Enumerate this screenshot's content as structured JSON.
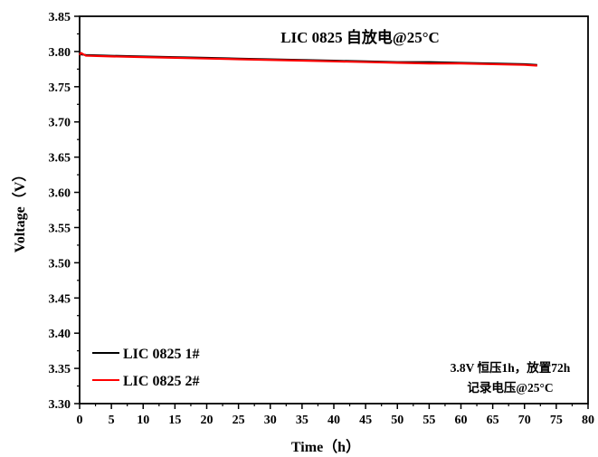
{
  "chart_data": {
    "type": "line",
    "title": "LIC 0825 自放电@25°C",
    "xlabel": "Time（h）",
    "ylabel": "Voltage（V）",
    "xlim": [
      0,
      80
    ],
    "ylim": [
      3.3,
      3.85
    ],
    "x_ticks": [
      0,
      5,
      10,
      15,
      20,
      25,
      30,
      35,
      40,
      45,
      50,
      55,
      60,
      65,
      70,
      75,
      80
    ],
    "y_ticks": [
      "3.30",
      "3.35",
      "3.40",
      "3.45",
      "3.50",
      "3.55",
      "3.60",
      "3.65",
      "3.70",
      "3.75",
      "3.80",
      "3.85"
    ],
    "grid": false,
    "legend_position": "bottom-left",
    "series": [
      {
        "name": "LIC 0825 1#",
        "color": "#000000",
        "x": [
          0,
          1,
          5,
          10,
          15,
          20,
          25,
          30,
          35,
          40,
          45,
          50,
          55,
          60,
          65,
          70,
          72
        ],
        "y": [
          3.796,
          3.795,
          3.794,
          3.793,
          3.792,
          3.791,
          3.79,
          3.789,
          3.788,
          3.787,
          3.786,
          3.785,
          3.785,
          3.784,
          3.783,
          3.782,
          3.781
        ]
      },
      {
        "name": "LIC 0825 2#",
        "color": "#ff0000",
        "x": [
          0,
          0.2,
          1,
          5,
          10,
          15,
          20,
          25,
          30,
          35,
          40,
          45,
          50,
          55,
          60,
          65,
          70,
          72
        ],
        "y": [
          3.795,
          3.798,
          3.794,
          3.793,
          3.792,
          3.791,
          3.79,
          3.789,
          3.788,
          3.787,
          3.786,
          3.785,
          3.784,
          3.783,
          3.783,
          3.782,
          3.781,
          3.78
        ]
      }
    ],
    "annotation": {
      "line1": "3.8V 恒压1h，放置72h",
      "line2": "记录电压@25°C"
    }
  }
}
